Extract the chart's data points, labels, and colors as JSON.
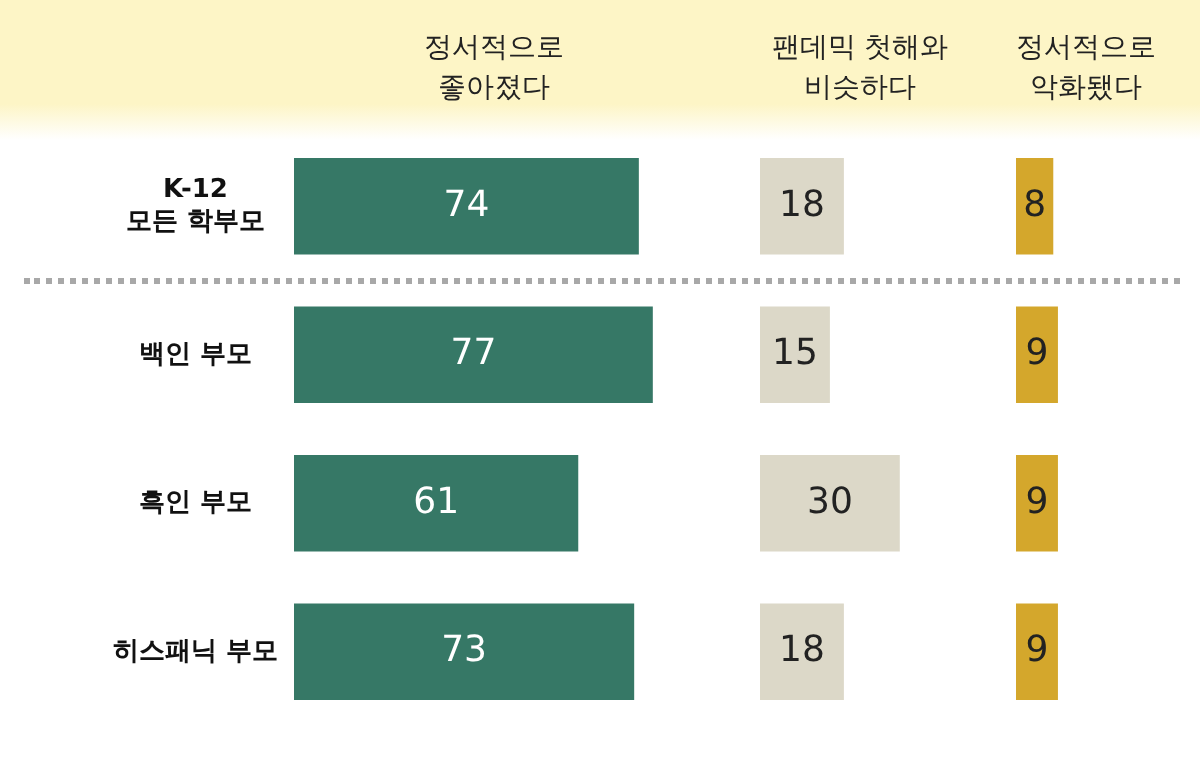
{
  "chart_data": [
    {
      "type": "bar",
      "orientation": "horizontal",
      "title": "정서적으로\n좋아졌다",
      "categories": [
        "K-12\n모든 학부모",
        "백인 부모",
        "흑인 부모",
        "히스패닉 부모"
      ],
      "values": [
        74,
        77,
        61,
        73
      ],
      "color": "#367866",
      "data_labels": true,
      "tick_labels": "y"
    },
    {
      "type": "bar",
      "orientation": "horizontal",
      "title": "팬데믹 첫해와\n비슷하다",
      "values": [
        18,
        15,
        30,
        18
      ],
      "color": "#dcd8c8",
      "data_labels": true,
      "tick_labels": false
    },
    {
      "type": "bar",
      "orientation": "horizontal",
      "title": "정서적으로\n악화됐다",
      "values": [
        8,
        9,
        9,
        9
      ],
      "color": "#d4a72c",
      "data_labels": true,
      "tick_labels": false
    }
  ]
}
